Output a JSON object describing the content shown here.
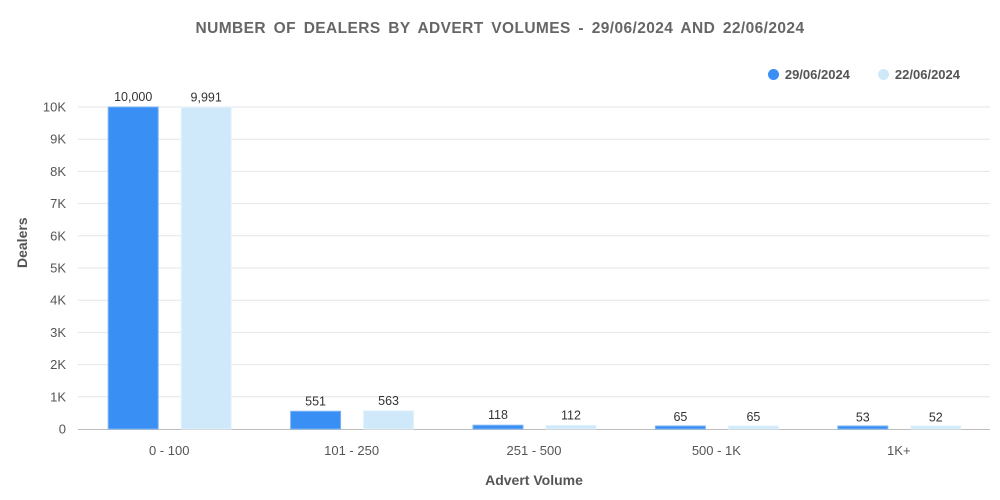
{
  "chart_data": {
    "type": "bar",
    "title": "NUMBER OF DEALERS BY ADVERT VOLUMES - 29/06/2024 AND 22/06/2024",
    "xlabel": "Advert Volume",
    "ylabel": "Dealers",
    "categories": [
      "0 - 100",
      "101 - 250",
      "251 - 500",
      "500 - 1K",
      "1K+"
    ],
    "series": [
      {
        "name": "29/06/2024",
        "color": "#3a8ff5",
        "values": [
          10000,
          551,
          118,
          65,
          53
        ],
        "labels": [
          "10,000",
          "551",
          "118",
          "65",
          "53"
        ]
      },
      {
        "name": "22/06/2024",
        "color": "#cfe9fb",
        "values": [
          9991,
          563,
          112,
          65,
          52
        ],
        "labels": [
          "9,991",
          "563",
          "112",
          "65",
          "52"
        ]
      }
    ],
    "ylim": [
      0,
      10000
    ],
    "yticks": [
      0,
      1000,
      2000,
      3000,
      4000,
      5000,
      6000,
      7000,
      8000,
      9000,
      10000
    ],
    "ytick_labels": [
      "0",
      "1K",
      "2K",
      "3K",
      "4K",
      "5K",
      "6K",
      "7K",
      "8K",
      "9K",
      "10K"
    ],
    "legend_position": "top-right",
    "grid": true
  }
}
